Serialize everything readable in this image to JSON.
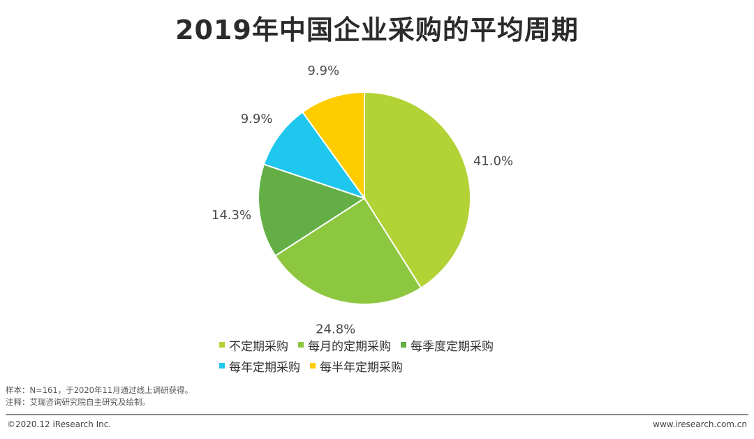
{
  "title": "2019年中国企业采购的平均周期",
  "chart_data": {
    "type": "pie",
    "title": "2019年中国企业采购的平均周期",
    "categories": [
      "不定期采购",
      "每月的定期采购",
      "每季度定期采购",
      "每年定期采购",
      "每半年定期采购"
    ],
    "values": [
      41.0,
      24.8,
      14.3,
      9.9,
      9.9
    ],
    "labels": [
      "41.0%",
      "24.8%",
      "14.3%",
      "9.9%",
      "9.9%"
    ],
    "colors": [
      "#B2D235",
      "#8DC63F",
      "#63AF46",
      "#1FC6EE",
      "#FFCC00"
    ],
    "start": "12 o'clock, clockwise",
    "legend_position": "bottom"
  },
  "legend": [
    {
      "label": "不定期采购",
      "color": "#B2D235"
    },
    {
      "label": "每月的定期采购",
      "color": "#8DC63F"
    },
    {
      "label": "每季度定期采购",
      "color": "#63AF46"
    },
    {
      "label": "每年定期采购",
      "color": "#1FC6EE"
    },
    {
      "label": "每半年定期采购",
      "color": "#FFCC00"
    }
  ],
  "notes": {
    "sample": "样本：N=161，于2020年11月通过线上调研获得。",
    "source": "注释：艾瑞咨询研究院自主研究及绘制。"
  },
  "footer": {
    "copyright": "©2020.12 iResearch Inc.",
    "website": "www.iresearch.com.cn"
  }
}
